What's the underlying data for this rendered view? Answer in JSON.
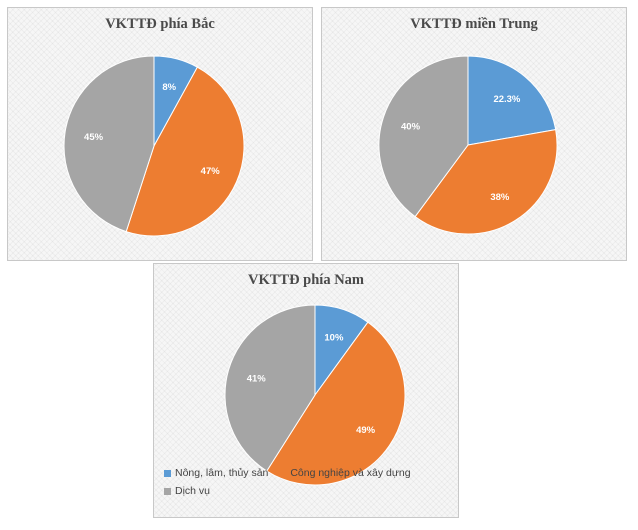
{
  "legend": [
    {
      "label": "Nông, lâm, thủy sản",
      "color": "#5B9BD5"
    },
    {
      "label": "Công nghiệp và xây dựng",
      "color": "#ED7D31"
    },
    {
      "label": "Dịch vụ",
      "color": "#A5A5A5"
    }
  ],
  "chart_data": [
    {
      "type": "pie",
      "title": "VKTTĐ phía Bắc",
      "categories": [
        "Nông, lâm, thủy sản",
        "Công nghiệp và xây dựng",
        "Dịch vụ"
      ],
      "values": [
        8,
        47,
        45
      ],
      "labels": [
        "8%",
        "47%",
        "45%"
      ],
      "colors": [
        "#5B9BD5",
        "#ED7D31",
        "#A5A5A5"
      ]
    },
    {
      "type": "pie",
      "title": "VKTTĐ miền Trung",
      "categories": [
        "Nông, lâm, thủy sản",
        "Công nghiệp và xây dựng",
        "Dịch vụ"
      ],
      "values": [
        22.3,
        38,
        40
      ],
      "labels": [
        "22.3%",
        "38%",
        "40%"
      ],
      "colors": [
        "#5B9BD5",
        "#ED7D31",
        "#A5A5A5"
      ]
    },
    {
      "type": "pie",
      "title": "VKTTĐ phía Nam",
      "categories": [
        "Nông, lâm, thủy sản",
        "Công nghiệp và xây dựng",
        "Dịch vụ"
      ],
      "values": [
        10,
        49,
        41
      ],
      "labels": [
        "10%",
        "49%",
        "41%"
      ],
      "colors": [
        "#5B9BD5",
        "#ED7D31",
        "#A5A5A5"
      ],
      "legend": "bottom"
    }
  ]
}
